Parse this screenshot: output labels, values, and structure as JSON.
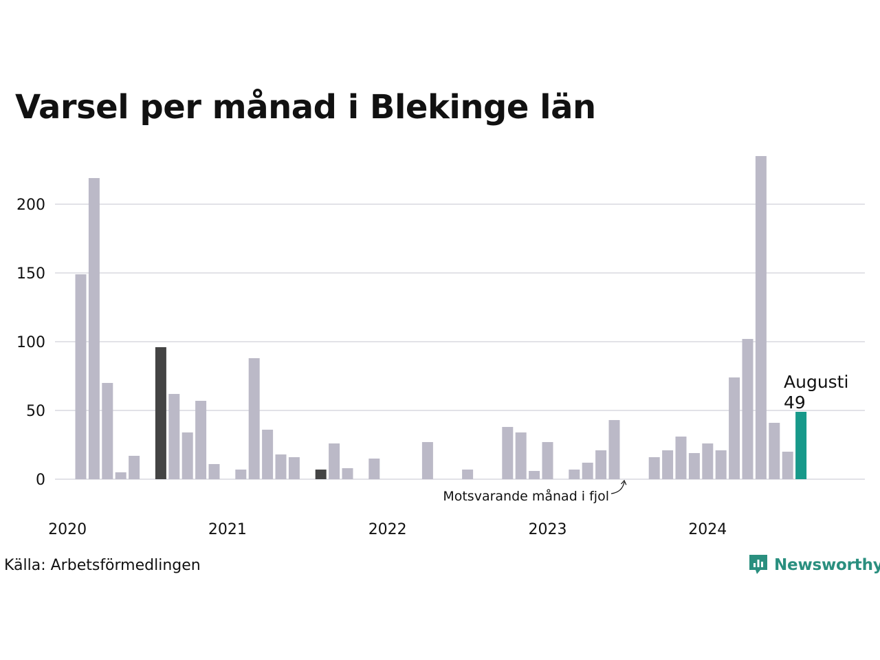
{
  "title": "Varsel per månad i Blekinge län",
  "source": "Källa: Arbetsförmedlingen",
  "brand": {
    "name": "Newsworthy",
    "icon": "chart-bubble-icon",
    "color": "#2a8f7f"
  },
  "colors": {
    "default": "#bbb9c7",
    "same_month_prior_years": "#444444",
    "current": "#17998a",
    "grid": "#e2e2e7"
  },
  "chart_data": {
    "type": "bar",
    "title": "Varsel per månad i Blekinge län",
    "xlabel": "",
    "ylabel": "",
    "ylim": [
      0,
      235
    ],
    "yticks": [
      0,
      50,
      100,
      150,
      200
    ],
    "xticks": [
      "2020",
      "2021",
      "2022",
      "2023",
      "2024"
    ],
    "grid": true,
    "start": "2020-01",
    "categories": [
      "2020-01",
      "2020-02",
      "2020-03",
      "2020-04",
      "2020-05",
      "2020-06",
      "2020-07",
      "2020-08",
      "2020-09",
      "2020-10",
      "2020-11",
      "2020-12",
      "2021-01",
      "2021-02",
      "2021-03",
      "2021-04",
      "2021-05",
      "2021-06",
      "2021-07",
      "2021-08",
      "2021-09",
      "2021-10",
      "2021-11",
      "2021-12",
      "2022-01",
      "2022-02",
      "2022-03",
      "2022-04",
      "2022-05",
      "2022-06",
      "2022-07",
      "2022-08",
      "2022-09",
      "2022-10",
      "2022-11",
      "2022-12",
      "2023-01",
      "2023-02",
      "2023-03",
      "2023-04",
      "2023-05",
      "2023-06",
      "2023-07",
      "2023-08",
      "2023-09",
      "2023-10",
      "2023-11",
      "2023-12",
      "2024-01",
      "2024-02",
      "2024-03",
      "2024-04",
      "2024-05",
      "2024-06",
      "2024-07",
      "2024-08"
    ],
    "values": [
      0,
      149,
      219,
      70,
      5,
      17,
      0,
      96,
      62,
      34,
      57,
      11,
      0,
      7,
      88,
      36,
      18,
      16,
      0,
      7,
      26,
      8,
      0,
      15,
      0,
      0,
      0,
      27,
      0,
      0,
      7,
      0,
      0,
      38,
      34,
      6,
      27,
      0,
      7,
      12,
      21,
      43,
      0,
      0,
      16,
      21,
      31,
      19,
      26,
      21,
      74,
      102,
      235,
      41,
      20,
      49
    ],
    "highlight_prior_same_month": [
      "2020-08",
      "2021-08"
    ],
    "current": {
      "label": "Augusti",
      "value": "49"
    },
    "annotation": "Motsvarande månad i fjol"
  }
}
